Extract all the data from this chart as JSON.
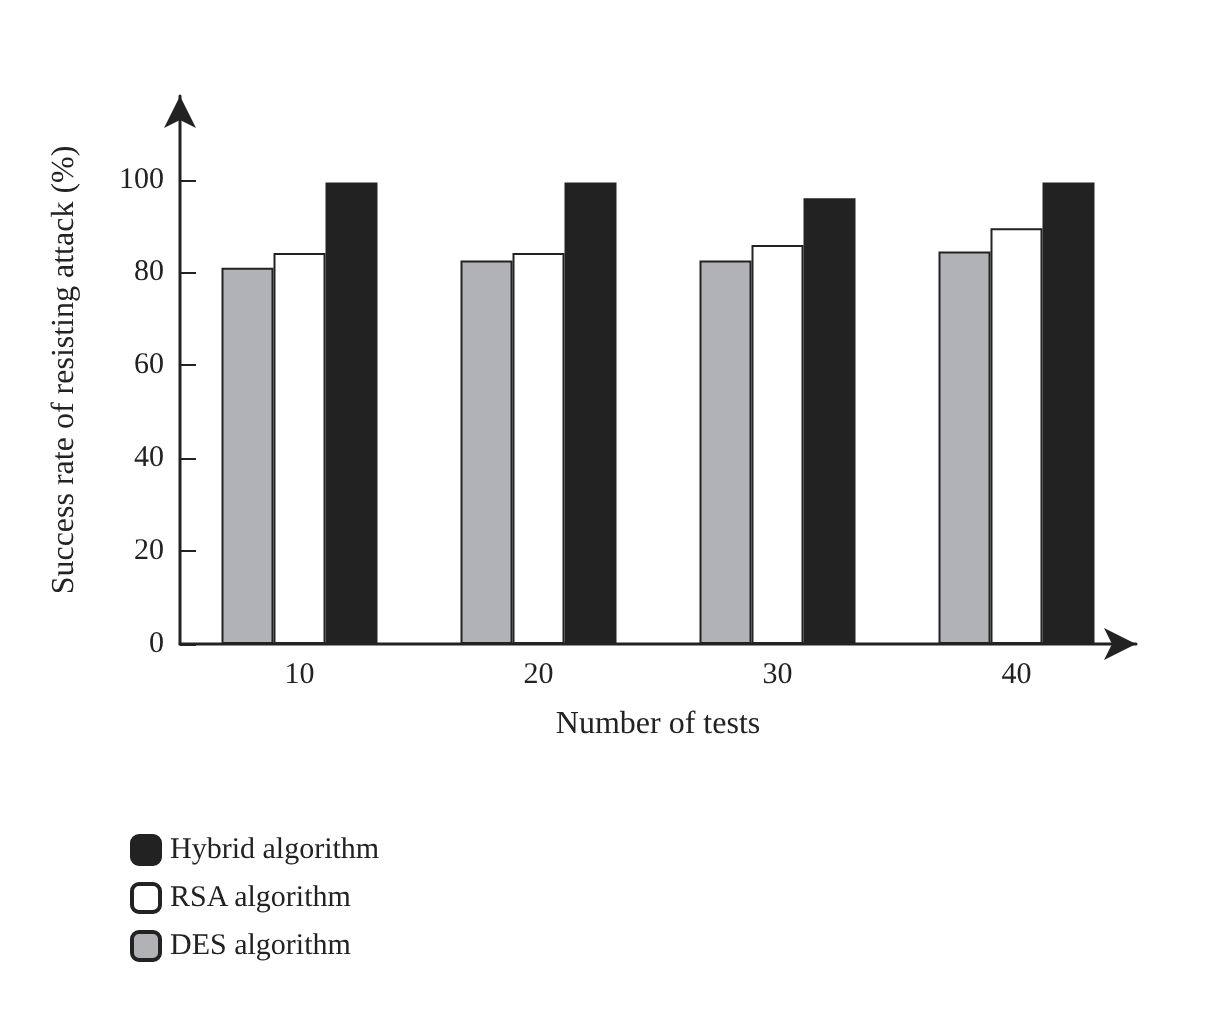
{
  "chart_data": {
    "type": "bar",
    "xlabel": "Number of tests",
    "ylabel": "Success rate of resisting attack (%)",
    "categories": [
      "10",
      "20",
      "30",
      "40"
    ],
    "series": [
      {
        "name": "DES algorithm",
        "color": "#b1b2b6",
        "values": [
          81,
          82.6,
          82.6,
          84.5
        ]
      },
      {
        "name": "RSA algorithm",
        "color": "#ffffff",
        "values": [
          84.2,
          84.2,
          85.9,
          89.5
        ]
      },
      {
        "name": "Hybrid algorithm",
        "color": "#222222",
        "values": [
          99.4,
          99.4,
          96,
          99.4
        ]
      }
    ],
    "ylim": [
      0,
      118
    ],
    "yticks": [
      0,
      20,
      40,
      60,
      80,
      100
    ],
    "grid": false,
    "legend": "bottom left"
  }
}
